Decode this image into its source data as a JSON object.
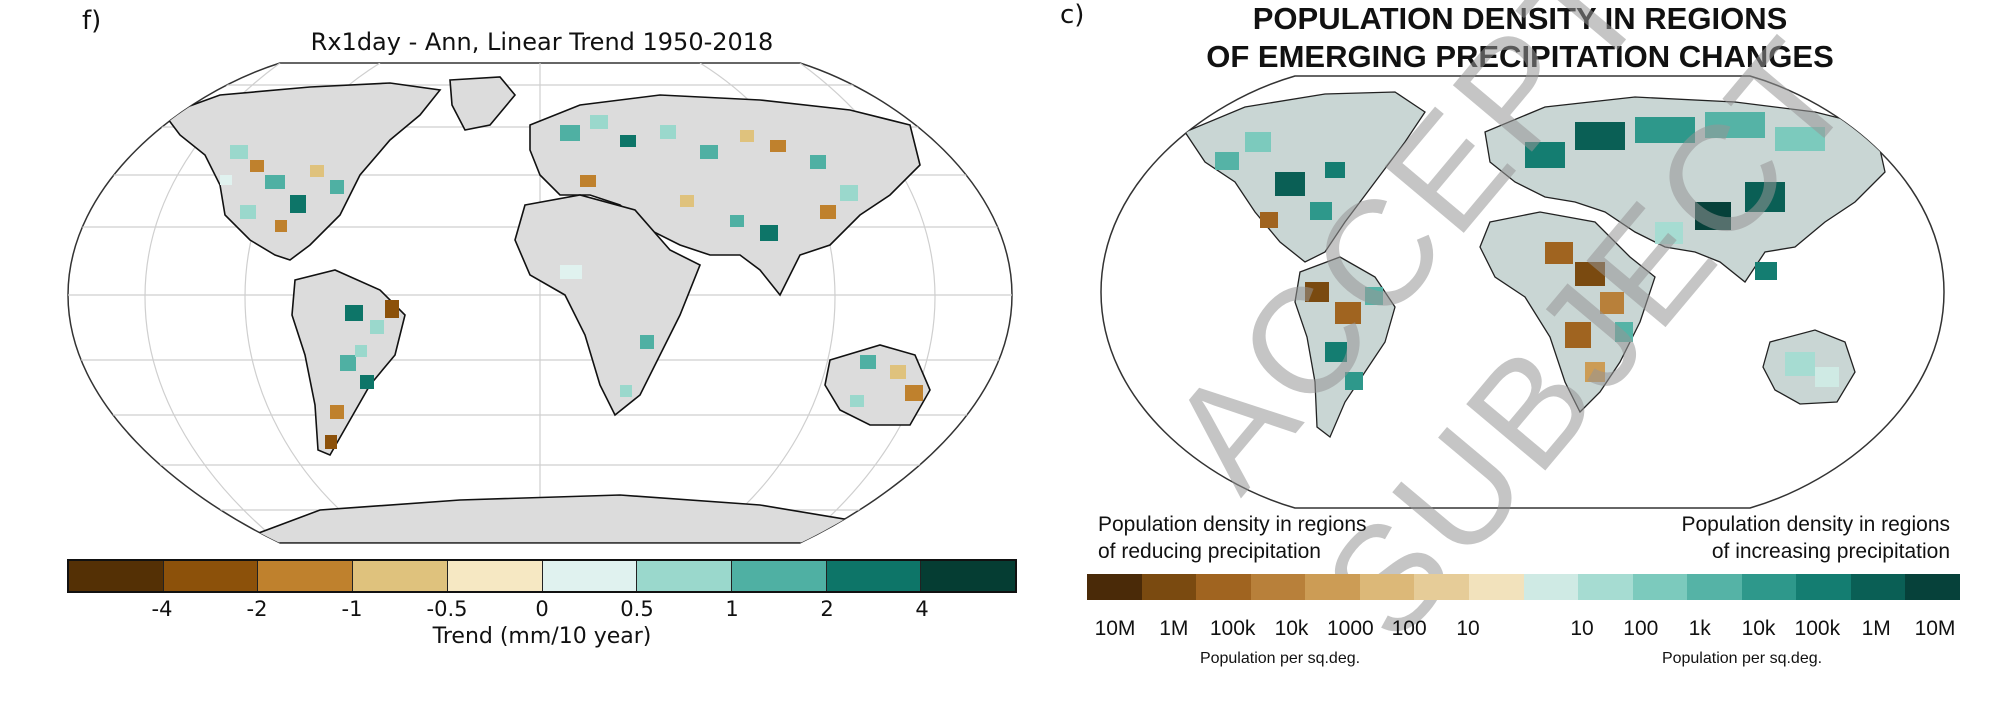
{
  "panel_f": {
    "letter": "f)",
    "title": "Rx1day - Ann, Linear Trend 1950-2018",
    "colorbar": {
      "colors": [
        "#543005",
        "#8c510a",
        "#bf812d",
        "#dfc27d",
        "#f6e8c3",
        "#e0f2ef",
        "#9ad8cc",
        "#4fb0a3",
        "#0d7568",
        "#053d33"
      ],
      "tick_labels": [
        "-4",
        "-2",
        "-1",
        "-0.5",
        "0",
        "0.5",
        "1",
        "2",
        "4"
      ],
      "label": "Trend (mm/10 year)"
    },
    "map_style": {
      "land": "#dcdcdc",
      "coast": "#111111",
      "grid": "#c8c8c8"
    }
  },
  "panel_c": {
    "letter": "c)",
    "title_line1": "POPULATION DENSITY IN REGIONS",
    "title_line2": "OF EMERGING PRECIPITATION CHANGES",
    "legend_left_line1": "Population density in regions",
    "legend_left_line2": "of reducing precipitation",
    "legend_right_line1": "Population density in regions",
    "legend_right_line2": "of increasing precipitation",
    "colorbar": {
      "colors": [
        "#4a2a08",
        "#7a4a10",
        "#a06420",
        "#b8803a",
        "#cc9c55",
        "#dcb878",
        "#e6cc98",
        "#f2e2bc",
        "#cfeae4",
        "#a6dcd2",
        "#7ccabd",
        "#55b3a6",
        "#2e988b",
        "#147d71",
        "#0a5f55",
        "#06413a"
      ],
      "left_ticks": [
        "10M",
        "1M",
        "100k",
        "10k",
        "1000",
        "100",
        "10"
      ],
      "right_ticks": [
        "10",
        "100",
        "1k",
        "10k",
        "100k",
        "1M",
        "10M"
      ],
      "unit_left": "Population per sq.deg.",
      "unit_right": "Population per sq.deg."
    },
    "map_style": {
      "land": "#c9d6d4",
      "coast": "#222222"
    }
  },
  "watermark": {
    "word1": "ACCEPTED",
    "word2": "SUBJECT"
  }
}
